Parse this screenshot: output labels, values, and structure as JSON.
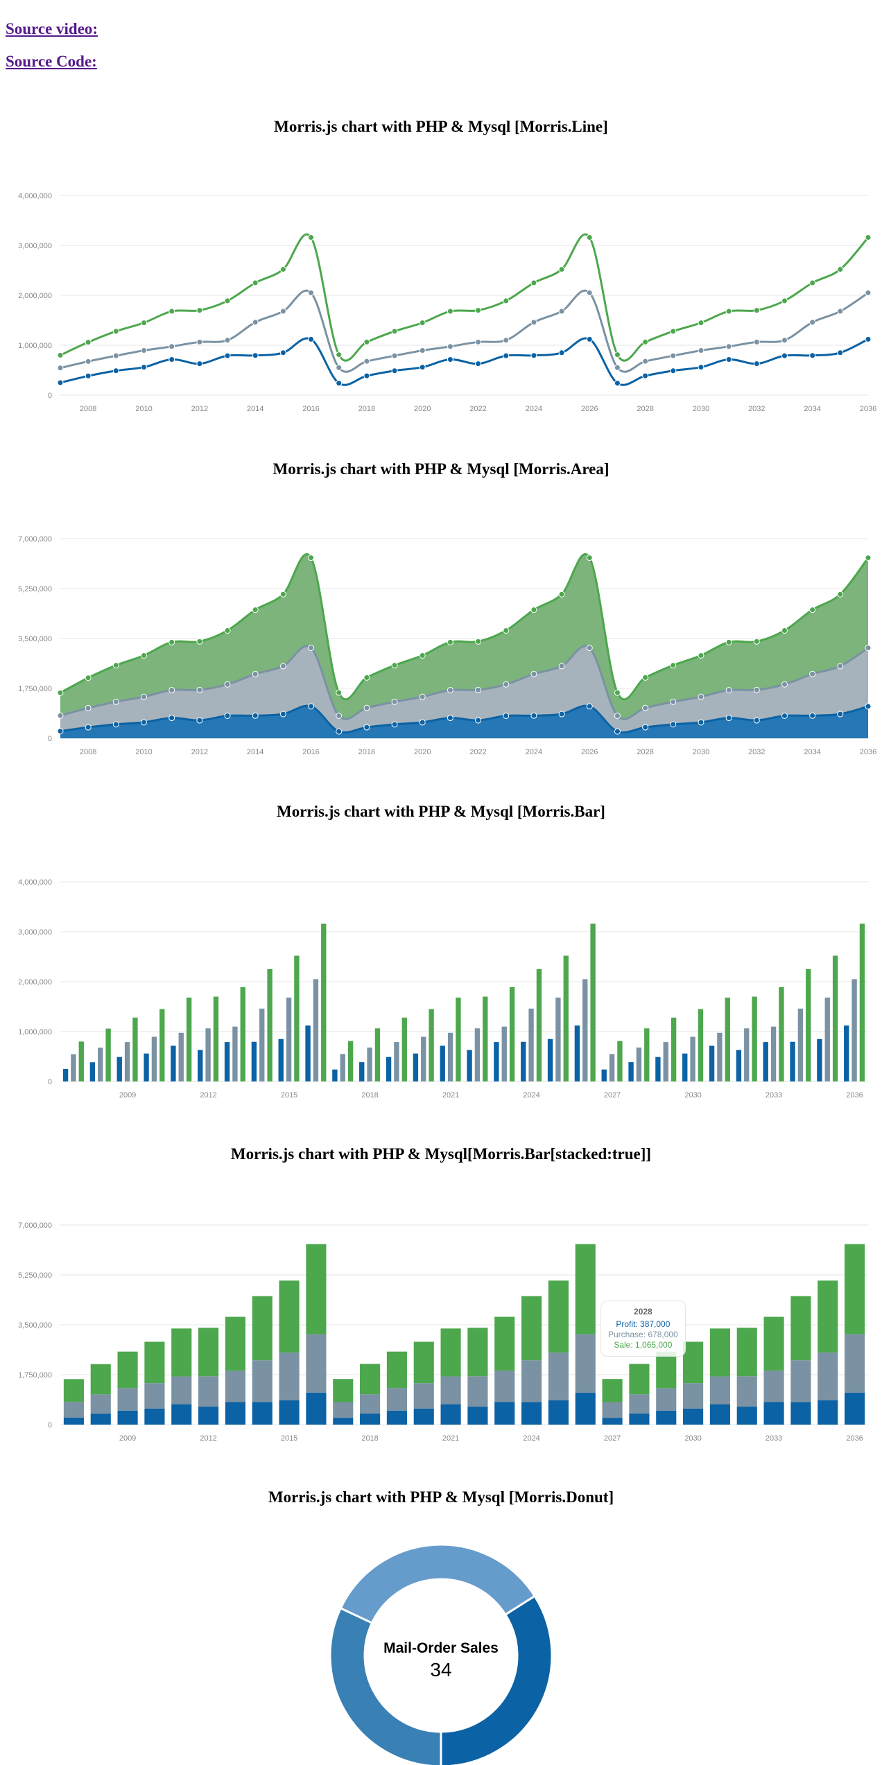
{
  "links": {
    "video": "Source video:",
    "code": "Source Code:"
  },
  "colors": {
    "profit": "#0b62a4",
    "purchase": "#7a92a3",
    "sale": "#4da74d"
  },
  "chart_data": [
    {
      "type": "line",
      "title": "Morris.js chart with PHP & Mysql [Morris.Line]",
      "x": [
        2007,
        2008,
        2009,
        2010,
        2011,
        2012,
        2013,
        2014,
        2015,
        2016,
        2017,
        2018,
        2019,
        2020,
        2021,
        2022,
        2023,
        2024,
        2025,
        2026,
        2027,
        2028,
        2029,
        2030,
        2031,
        2032,
        2033,
        2034,
        2035,
        2036
      ],
      "series": [
        {
          "name": "Profit",
          "values": [
            250000,
            385000,
            490000,
            560000,
            715000,
            630000,
            790000,
            795000,
            850000,
            1120000,
            240000,
            387000,
            490000,
            560000,
            715000,
            630000,
            790000,
            795000,
            850000,
            1120000,
            240000,
            387000,
            490000,
            560000,
            715000,
            630000,
            790000,
            795000,
            850000,
            1120000
          ]
        },
        {
          "name": "Purchase",
          "values": [
            545000,
            676000,
            790000,
            895000,
            975000,
            1065000,
            1100000,
            1460000,
            1680000,
            2050000,
            550000,
            678000,
            790000,
            895000,
            975000,
            1065000,
            1100000,
            1460000,
            1680000,
            2050000,
            550000,
            678000,
            790000,
            895000,
            975000,
            1065000,
            1100000,
            1460000,
            1680000,
            2050000
          ]
        },
        {
          "name": "Sale",
          "values": [
            800000,
            1060000,
            1280000,
            1450000,
            1680000,
            1700000,
            1890000,
            2250000,
            2520000,
            3160000,
            810000,
            1065000,
            1280000,
            1450000,
            1680000,
            1700000,
            1890000,
            2250000,
            2520000,
            3160000,
            810000,
            1065000,
            1280000,
            1450000,
            1680000,
            1700000,
            1890000,
            2250000,
            2520000,
            3160000
          ]
        }
      ],
      "ylim": [
        0,
        4000000
      ],
      "yticks": [
        "4,000,000",
        "3,000,000",
        "2,000,000",
        "1,000,000",
        "0"
      ],
      "xticks": [
        "2008",
        "2010",
        "2012",
        "2014",
        "2016",
        "2018",
        "2020",
        "2022",
        "2024",
        "2026",
        "2028",
        "2030",
        "2032",
        "2034",
        "2036"
      ],
      "grid": true
    },
    {
      "type": "area",
      "stacked": true,
      "title": "Morris.js chart with PHP & Mysql [Morris.Area]",
      "ylim": [
        0,
        7000000
      ],
      "yticks": [
        "7,000,000",
        "5,250,000",
        "3,500,000",
        "1,750,000",
        "0"
      ],
      "xticks": [
        "2008",
        "2010",
        "2012",
        "2014",
        "2016",
        "2018",
        "2020",
        "2022",
        "2024",
        "2026",
        "2028",
        "2030",
        "2032",
        "2034",
        "2036"
      ],
      "grid": true
    },
    {
      "type": "bar",
      "title": "Morris.js chart with PHP & Mysql [Morris.Bar]",
      "ylim": [
        0,
        4000000
      ],
      "yticks": [
        "4,000,000",
        "3,000,000",
        "2,000,000",
        "1,000,000",
        "0"
      ],
      "xticks": [
        "2009",
        "2012",
        "2015",
        "2018",
        "2021",
        "2024",
        "2027",
        "2030",
        "2033",
        "2036"
      ],
      "grid": true
    },
    {
      "type": "bar",
      "stacked": true,
      "title": "Morris.js chart with PHP & Mysql[Morris.Bar[stacked:true]]",
      "ylim": [
        0,
        7000000
      ],
      "yticks": [
        "7,000,000",
        "5,250,000",
        "3,500,000",
        "1,750,000",
        "0"
      ],
      "xticks": [
        "2009",
        "2012",
        "2015",
        "2018",
        "2021",
        "2024",
        "2027",
        "2030",
        "2033",
        "2036"
      ],
      "grid": true,
      "hover": {
        "title": "2028",
        "lines": [
          {
            "text": "Profit: 387,000",
            "color": "#0b62a4"
          },
          {
            "text": "Purchase: 678,000",
            "color": "#7a92a3"
          },
          {
            "text": "Sale: 1,065,000",
            "color": "#4da74d"
          }
        ]
      }
    },
    {
      "type": "pie",
      "title": "Morris.js chart with PHP & Mysql [Morris.Donut]",
      "center_label": "Mail-Order Sales",
      "center_value": "34",
      "slices": [
        {
          "value": 34,
          "color": "#0b62a4"
        },
        {
          "value": 34,
          "color": "#669ccc"
        },
        {
          "value": 32,
          "color": "#3980b5"
        }
      ]
    }
  ]
}
